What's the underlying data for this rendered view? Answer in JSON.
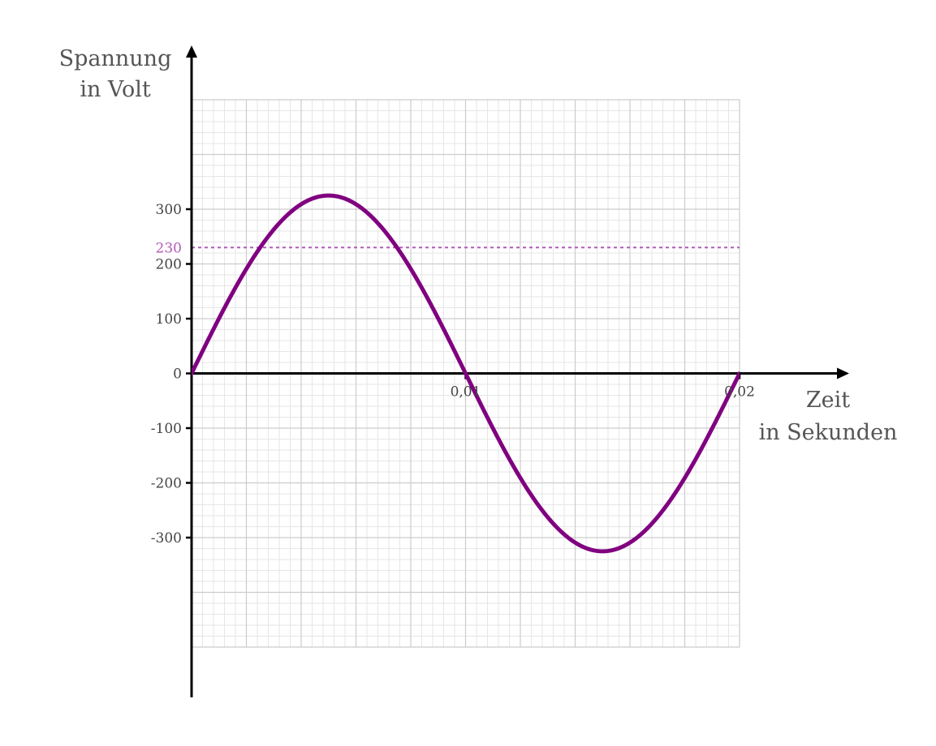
{
  "chart_data": {
    "type": "line",
    "title": "",
    "ylabel_lines": [
      "Spannung",
      "in Volt"
    ],
    "xlabel_lines": [
      "Zeit",
      "in Sekunden"
    ],
    "xlim": [
      0,
      0.02
    ],
    "ylim": [
      -500,
      500
    ],
    "x_ticks": [
      {
        "value": 0.01,
        "label": "0,01"
      },
      {
        "value": 0.02,
        "label": "0,02"
      }
    ],
    "y_ticks": [
      {
        "value": 300,
        "label": "300"
      },
      {
        "value": 200,
        "label": "200"
      },
      {
        "value": 100,
        "label": "100"
      },
      {
        "value": 0,
        "label": "0"
      },
      {
        "value": -100,
        "label": "-100"
      },
      {
        "value": -200,
        "label": "-200"
      },
      {
        "value": -300,
        "label": "-300"
      }
    ],
    "reference_line": {
      "value": 230,
      "label": "230",
      "color": "#b05cb8"
    },
    "grid": true,
    "grid_major_x": 0.002,
    "grid_major_y": 100,
    "grid_minor_x": 0.0004,
    "grid_minor_y": 20,
    "series": [
      {
        "color": "#800080",
        "amplitude": 325,
        "frequency": 50,
        "x": [
          0,
          0.001,
          0.002,
          0.003,
          0.004,
          0.005,
          0.006,
          0.007,
          0.008,
          0.009,
          0.01,
          0.011,
          0.012,
          0.013,
          0.014,
          0.015,
          0.016,
          0.017,
          0.018,
          0.019,
          0.02
        ],
        "values": [
          0,
          100,
          191,
          263,
          309,
          325,
          309,
          263,
          191,
          100,
          0,
          -100,
          -191,
          -263,
          -309,
          -325,
          -309,
          -263,
          -191,
          -100,
          0
        ]
      }
    ],
    "colors": {
      "axis": "#000000",
      "grid_major": "#cccccc",
      "grid_minor": "#e6e6e6"
    }
  }
}
